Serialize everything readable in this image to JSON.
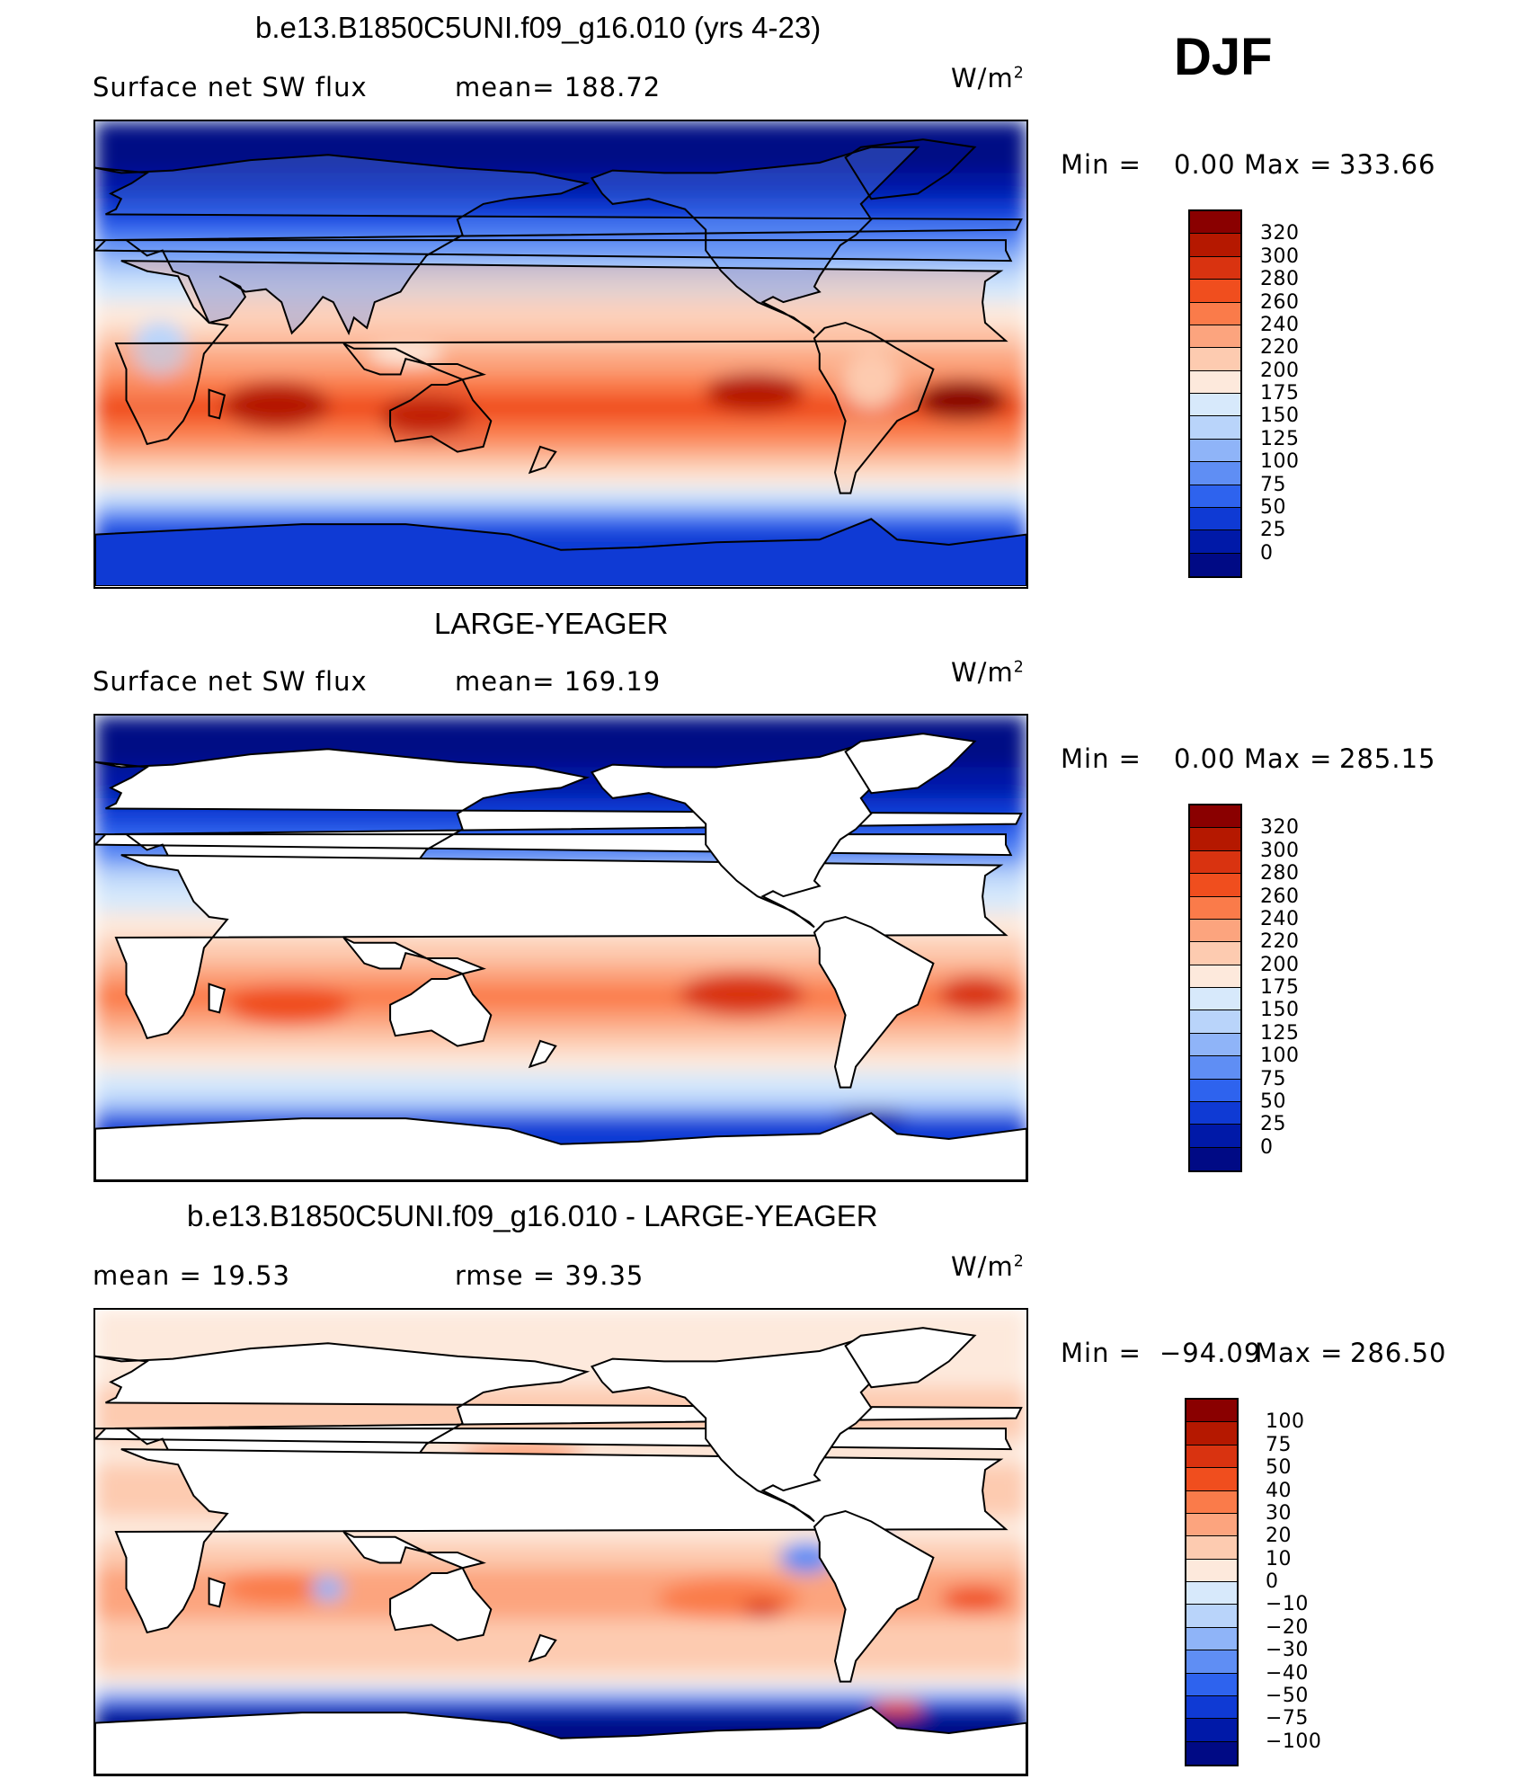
{
  "season": "DJF",
  "units_base": "W/m",
  "units_exp": "2",
  "chart_data": [
    {
      "type": "heatmap",
      "title": "b.e13.B1850C5UNI.f09_g16.010 (yrs 4-23)",
      "left_label": "Surface net SW flux",
      "mid_label": "mean= 188.72",
      "min_label": "Min =",
      "min_value": "0.00",
      "max_label": "Max =",
      "max_value": "333.66",
      "levels": [
        "320",
        "300",
        "280",
        "260",
        "240",
        "220",
        "200",
        "175",
        "150",
        "125",
        "100",
        "75",
        "50",
        "25",
        "0"
      ],
      "colors": [
        "#8a0000",
        "#b51800",
        "#d93310",
        "#f04e1e",
        "#fa7b4a",
        "#fca47e",
        "#fdcbb0",
        "#fde9dc",
        "#d7e9fb",
        "#b9d4fa",
        "#8fb4f8",
        "#5f8ef4",
        "#2e63ee",
        "#0f3ad4",
        "#0019a8",
        "#000a85"
      ],
      "land_masked": false
    },
    {
      "type": "heatmap",
      "title": "LARGE-YEAGER",
      "left_label": "Surface net SW flux",
      "mid_label": "mean= 169.19",
      "min_label": "Min =",
      "min_value": "0.00",
      "max_label": "Max =",
      "max_value": "285.15",
      "levels": [
        "320",
        "300",
        "280",
        "260",
        "240",
        "220",
        "200",
        "175",
        "150",
        "125",
        "100",
        "75",
        "50",
        "25",
        "0"
      ],
      "colors": [
        "#8a0000",
        "#b51800",
        "#d93310",
        "#f04e1e",
        "#fa7b4a",
        "#fca47e",
        "#fdcbb0",
        "#fde9dc",
        "#d7e9fb",
        "#b9d4fa",
        "#8fb4f8",
        "#5f8ef4",
        "#2e63ee",
        "#0f3ad4",
        "#0019a8",
        "#000a85"
      ],
      "land_masked": true
    },
    {
      "type": "heatmap",
      "title": "b.e13.B1850C5UNI.f09_g16.010 - LARGE-YEAGER",
      "left_label": "mean =   19.53",
      "mid_label": "rmse =   39.35",
      "min_label": "Min =",
      "min_value": "−94.09",
      "max_label": "Max =",
      "max_value": "286.50",
      "levels": [
        "100",
        "75",
        "50",
        "40",
        "30",
        "20",
        "10",
        "0",
        "−10",
        "−20",
        "−30",
        "−40",
        "−50",
        "−75",
        "−100"
      ],
      "colors": [
        "#8a0000",
        "#b51800",
        "#d93310",
        "#f04e1e",
        "#fa7b4a",
        "#fca47e",
        "#fdcbb0",
        "#fde9dc",
        "#d7e9fb",
        "#b9d4fa",
        "#8fb4f8",
        "#5f8ef4",
        "#2e63ee",
        "#0f3ad4",
        "#0019a8",
        "#000a85"
      ],
      "land_masked": true
    }
  ]
}
